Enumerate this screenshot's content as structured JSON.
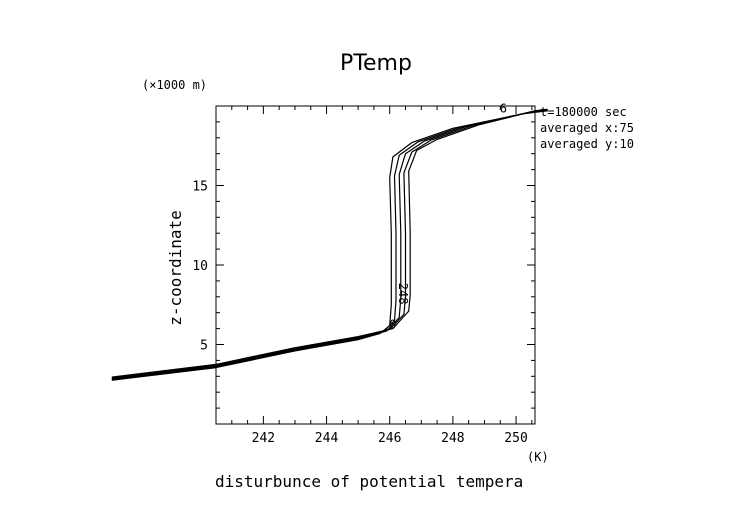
{
  "chart_data": {
    "type": "line",
    "title": "PTemp",
    "xlabel": "disturbunce of potential tempera",
    "x_unit": "(K)",
    "ylabel": "z-coordinate",
    "y_unit": "(×1000 m)",
    "xlim": [
      240.5,
      250.6
    ],
    "ylim": [
      0,
      20
    ],
    "xticks": [
      242,
      244,
      246,
      248,
      250
    ],
    "yticks": [
      5,
      10,
      15
    ],
    "annotations": [
      "t=180000 sec",
      "averaged  x:75",
      "averaged  y:10"
    ],
    "curve_labels": [
      {
        "text": "248",
        "x": 246.3,
        "y": 8.2
      },
      {
        "text": "0",
        "x": 246.1,
        "y": 6.0
      },
      {
        "text": "6",
        "x": 249.6,
        "y": 19.6
      }
    ],
    "series": [
      {
        "values": [
          {
            "x": 237.2,
            "y": 2.75
          },
          {
            "x": 240.5,
            "y": 3.55
          },
          {
            "x": 243.0,
            "y": 4.6
          },
          {
            "x": 245.0,
            "y": 5.3
          },
          {
            "x": 245.7,
            "y": 5.7
          },
          {
            "x": 246.0,
            "y": 6.2
          },
          {
            "x": 246.05,
            "y": 7.5
          },
          {
            "x": 246.05,
            "y": 12.0
          },
          {
            "x": 246.0,
            "y": 15.5
          },
          {
            "x": 246.1,
            "y": 16.8
          },
          {
            "x": 246.7,
            "y": 17.7
          },
          {
            "x": 248.0,
            "y": 18.6
          },
          {
            "x": 250.2,
            "y": 19.5
          },
          {
            "x": 251.0,
            "y": 19.7
          }
        ]
      },
      {
        "values": [
          {
            "x": 237.2,
            "y": 2.8
          },
          {
            "x": 240.5,
            "y": 3.6
          },
          {
            "x": 243.0,
            "y": 4.65
          },
          {
            "x": 245.0,
            "y": 5.35
          },
          {
            "x": 245.8,
            "y": 5.8
          },
          {
            "x": 246.15,
            "y": 6.5
          },
          {
            "x": 246.2,
            "y": 7.8
          },
          {
            "x": 246.2,
            "y": 12.0
          },
          {
            "x": 246.15,
            "y": 15.6
          },
          {
            "x": 246.3,
            "y": 16.9
          },
          {
            "x": 246.9,
            "y": 17.75
          },
          {
            "x": 248.2,
            "y": 18.65
          },
          {
            "x": 250.3,
            "y": 19.55
          },
          {
            "x": 251.0,
            "y": 19.72
          }
        ]
      },
      {
        "values": [
          {
            "x": 237.2,
            "y": 2.85
          },
          {
            "x": 240.5,
            "y": 3.65
          },
          {
            "x": 243.0,
            "y": 4.7
          },
          {
            "x": 245.0,
            "y": 5.4
          },
          {
            "x": 245.9,
            "y": 5.85
          },
          {
            "x": 246.3,
            "y": 6.7
          },
          {
            "x": 246.35,
            "y": 7.9
          },
          {
            "x": 246.35,
            "y": 12.0
          },
          {
            "x": 246.3,
            "y": 15.7
          },
          {
            "x": 246.5,
            "y": 17.0
          },
          {
            "x": 247.1,
            "y": 17.8
          },
          {
            "x": 248.4,
            "y": 18.7
          },
          {
            "x": 250.4,
            "y": 19.6
          },
          {
            "x": 251.0,
            "y": 19.75
          }
        ]
      },
      {
        "values": [
          {
            "x": 237.2,
            "y": 2.9
          },
          {
            "x": 240.5,
            "y": 3.7
          },
          {
            "x": 243.0,
            "y": 4.75
          },
          {
            "x": 245.0,
            "y": 5.45
          },
          {
            "x": 246.0,
            "y": 5.95
          },
          {
            "x": 246.45,
            "y": 6.9
          },
          {
            "x": 246.5,
            "y": 8.0
          },
          {
            "x": 246.5,
            "y": 12.0
          },
          {
            "x": 246.45,
            "y": 15.8
          },
          {
            "x": 246.7,
            "y": 17.1
          },
          {
            "x": 247.3,
            "y": 17.85
          },
          {
            "x": 248.6,
            "y": 18.75
          },
          {
            "x": 250.5,
            "y": 19.65
          },
          {
            "x": 251.0,
            "y": 19.78
          }
        ]
      },
      {
        "values": [
          {
            "x": 237.2,
            "y": 2.95
          },
          {
            "x": 240.5,
            "y": 3.75
          },
          {
            "x": 243.0,
            "y": 4.8
          },
          {
            "x": 245.0,
            "y": 5.5
          },
          {
            "x": 246.1,
            "y": 6.0
          },
          {
            "x": 246.6,
            "y": 7.1
          },
          {
            "x": 246.65,
            "y": 8.1
          },
          {
            "x": 246.65,
            "y": 12.0
          },
          {
            "x": 246.6,
            "y": 15.9
          },
          {
            "x": 246.85,
            "y": 17.2
          },
          {
            "x": 247.5,
            "y": 17.9
          },
          {
            "x": 248.8,
            "y": 18.8
          },
          {
            "x": 250.6,
            "y": 19.7
          },
          {
            "x": 251.0,
            "y": 19.8
          }
        ]
      }
    ]
  }
}
